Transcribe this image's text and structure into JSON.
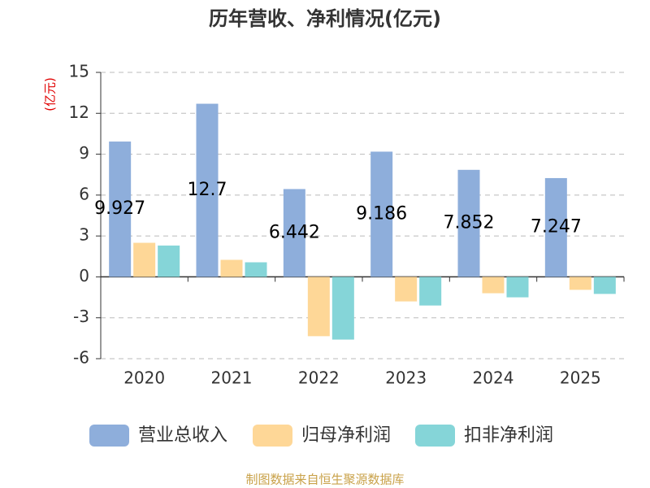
{
  "chart_data": {
    "type": "bar",
    "title": "历年营收、净利情况(亿元)",
    "y_label": "(亿元)",
    "footer": "制图数据来自恒生聚源数据库",
    "categories": [
      "2020",
      "2021",
      "2022",
      "2023",
      "2024",
      "2025"
    ],
    "series": [
      {
        "name": "营业总收入",
        "color": "#8eaedb",
        "values": [
          9.927,
          12.7,
          6.442,
          9.186,
          7.852,
          7.247
        ]
      },
      {
        "name": "归母净利润",
        "color": "#fed797",
        "values": [
          2.5,
          1.25,
          -4.35,
          -1.8,
          -1.2,
          -0.95
        ]
      },
      {
        "name": "扣非净利润",
        "color": "#85d5d8",
        "values": [
          2.3,
          1.07,
          -4.6,
          -2.1,
          -1.5,
          -1.25
        ]
      }
    ],
    "value_label_series": 0,
    "ylim": [
      -6,
      15
    ],
    "yticks": [
      -6,
      -3,
      0,
      3,
      6,
      9,
      12,
      15
    ],
    "grid": true
  }
}
